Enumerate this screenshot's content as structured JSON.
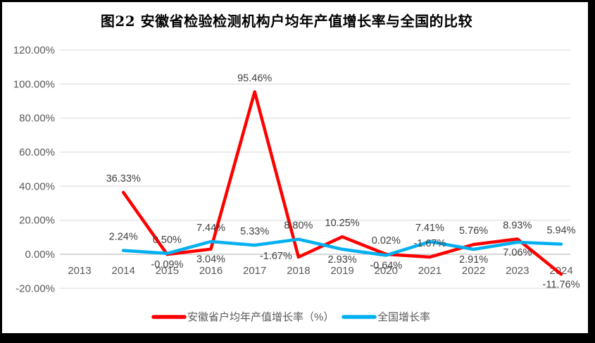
{
  "chart_data": {
    "type": "line",
    "title": "图22 安徽省检验检测机构户均年产值增长率与全国的比较",
    "categories": [
      "2013",
      "2014",
      "2015",
      "2016",
      "2017",
      "2018",
      "2019",
      "2020",
      "2021",
      "2022",
      "2023",
      "2024"
    ],
    "y_ticks": [
      "120.00%",
      "100.00%",
      "80.00%",
      "60.00%",
      "40.00%",
      "20.00%",
      "0.00%",
      "-20.00%"
    ],
    "ylim": [
      -20,
      120
    ],
    "grid": true,
    "legend_position": "bottom",
    "series": [
      {
        "name": "安徽省户均年产值增长率（%）",
        "color": "#FF0000",
        "values": [
          null,
          36.33,
          -0.09,
          3.04,
          95.46,
          -1.67,
          10.25,
          0.02,
          -1.67,
          5.76,
          8.93,
          -11.76
        ],
        "labels": [
          "",
          "36.33%",
          "-0.09%",
          "3.04%",
          "95.46%",
          "-1.67%",
          "10.25%",
          "0.02%",
          "-1.67%",
          "5.76%",
          "8.93%",
          "-11.76%"
        ],
        "label_pos": [
          "",
          "above",
          "below",
          "below",
          "above",
          "left",
          "above",
          "above",
          "above",
          "above",
          "above",
          "below"
        ]
      },
      {
        "name": "全国增长率",
        "color": "#00B0F0",
        "values": [
          null,
          2.24,
          0.5,
          7.44,
          5.33,
          8.8,
          2.93,
          -0.64,
          7.41,
          2.91,
          7.06,
          5.94
        ],
        "labels": [
          "",
          "2.24%",
          "0.50%",
          "7.44%",
          "5.33%",
          "8.80%",
          "2.93%",
          "-0.64%",
          "7.41%",
          "2.91%",
          "7.06%",
          "5.94%"
        ],
        "label_pos": [
          "",
          "above",
          "above",
          "above",
          "above",
          "above",
          "below",
          "below",
          "above",
          "below",
          "below",
          "above"
        ]
      }
    ],
    "colors": {
      "gridline": "#D9D9D9",
      "zero_line": "#BFBFBF",
      "axis_text": "#595959",
      "label_text": "#404040",
      "frame_border": "#000000",
      "background": "#FFFFFF"
    }
  }
}
